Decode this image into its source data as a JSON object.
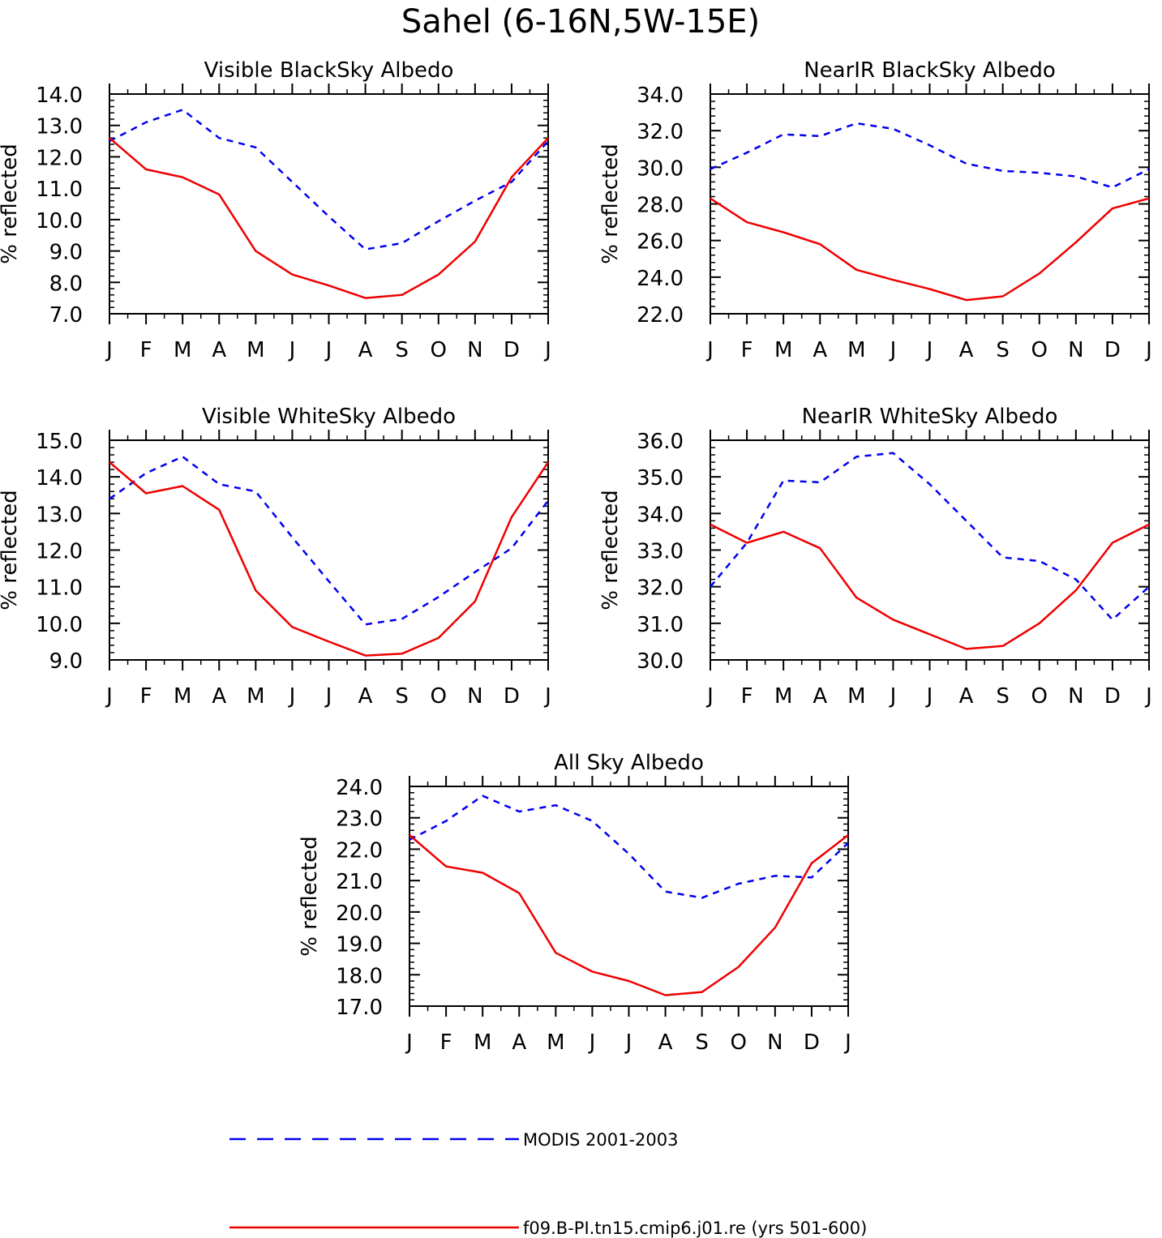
{
  "title": "Sahel (6-16N,5W-15E)",
  "colors": {
    "modis": "#0000ee",
    "model": "#ee0000",
    "axis": "#000000"
  },
  "legend": {
    "modis_label": "MODIS 2001-2003",
    "model_label": "f09.B-PI.tn15.cmip6.j01.re (yrs 501-600)"
  },
  "chart_data": [
    {
      "type": "line",
      "title": "Visible BlackSky Albedo",
      "ylabel": "% reflected",
      "categories": [
        "J",
        "F",
        "M",
        "A",
        "M",
        "J",
        "J",
        "A",
        "S",
        "O",
        "N",
        "D",
        "J"
      ],
      "ylim": [
        7.0,
        14.0
      ],
      "yticks": [
        "7.0",
        "8.0",
        "9.0",
        "10.0",
        "11.0",
        "12.0",
        "13.0",
        "14.0"
      ],
      "series": [
        {
          "name": "MODIS 2001-2003",
          "values": [
            12.5,
            13.1,
            13.5,
            12.6,
            12.3,
            11.2,
            10.1,
            9.05,
            9.25,
            9.95,
            10.6,
            11.2,
            12.5
          ]
        },
        {
          "name": "f09.B-PI.tn15.cmip6.j01.re (yrs 501-600)",
          "values": [
            12.6,
            11.6,
            11.35,
            10.8,
            9.0,
            8.25,
            7.9,
            7.5,
            7.6,
            8.25,
            9.3,
            11.35,
            12.6
          ]
        }
      ]
    },
    {
      "type": "line",
      "title": "NearIR BlackSky Albedo",
      "ylabel": "% reflected",
      "categories": [
        "J",
        "F",
        "M",
        "A",
        "M",
        "J",
        "J",
        "A",
        "S",
        "O",
        "N",
        "D",
        "J"
      ],
      "ylim": [
        22.0,
        34.0
      ],
      "yticks": [
        "22.0",
        "24.0",
        "26.0",
        "28.0",
        "30.0",
        "32.0",
        "34.0"
      ],
      "series": [
        {
          "name": "MODIS 2001-2003",
          "values": [
            29.9,
            30.8,
            31.8,
            31.7,
            32.4,
            32.1,
            31.2,
            30.2,
            29.8,
            29.7,
            29.5,
            28.9,
            29.9
          ]
        },
        {
          "name": "f09.B-PI.tn15.cmip6.j01.re (yrs 501-600)",
          "values": [
            28.3,
            27.0,
            26.45,
            25.8,
            24.4,
            23.85,
            23.35,
            22.75,
            22.95,
            24.2,
            25.9,
            27.75,
            28.3
          ]
        }
      ]
    },
    {
      "type": "line",
      "title": "Visible WhiteSky Albedo",
      "ylabel": "% reflected",
      "categories": [
        "J",
        "F",
        "M",
        "A",
        "M",
        "J",
        "J",
        "A",
        "S",
        "O",
        "N",
        "D",
        "J"
      ],
      "ylim": [
        9.0,
        15.0
      ],
      "yticks": [
        "9.0",
        "10.0",
        "11.0",
        "12.0",
        "13.0",
        "14.0",
        "15.0"
      ],
      "series": [
        {
          "name": "MODIS 2001-2003",
          "values": [
            13.4,
            14.1,
            14.55,
            13.8,
            13.6,
            12.35,
            11.15,
            9.97,
            10.12,
            10.72,
            11.4,
            12.05,
            13.35
          ]
        },
        {
          "name": "f09.B-PI.tn15.cmip6.j01.re (yrs 501-600)",
          "values": [
            14.4,
            13.55,
            13.75,
            13.1,
            10.9,
            9.9,
            9.5,
            9.12,
            9.17,
            9.6,
            10.6,
            12.9,
            14.4
          ]
        }
      ]
    },
    {
      "type": "line",
      "title": "NearIR WhiteSky Albedo",
      "ylabel": "% reflected",
      "categories": [
        "J",
        "F",
        "M",
        "A",
        "M",
        "J",
        "J",
        "A",
        "S",
        "O",
        "N",
        "D",
        "J"
      ],
      "ylim": [
        30.0,
        36.0
      ],
      "yticks": [
        "30.0",
        "31.0",
        "32.0",
        "33.0",
        "34.0",
        "35.0",
        "36.0"
      ],
      "series": [
        {
          "name": "MODIS 2001-2003",
          "values": [
            32.0,
            33.2,
            34.9,
            34.85,
            35.55,
            35.65,
            34.8,
            33.8,
            32.8,
            32.7,
            32.2,
            31.1,
            32.0
          ]
        },
        {
          "name": "f09.B-PI.tn15.cmip6.j01.re (yrs 501-600)",
          "values": [
            33.7,
            33.2,
            33.5,
            33.05,
            31.7,
            31.1,
            30.7,
            30.3,
            30.38,
            31.0,
            31.9,
            33.2,
            33.7
          ]
        }
      ]
    },
    {
      "type": "line",
      "title": "All Sky Albedo",
      "ylabel": "% reflected",
      "categories": [
        "J",
        "F",
        "M",
        "A",
        "M",
        "J",
        "J",
        "A",
        "S",
        "O",
        "N",
        "D",
        "J"
      ],
      "ylim": [
        17.0,
        24.0
      ],
      "yticks": [
        "17.0",
        "18.0",
        "19.0",
        "20.0",
        "21.0",
        "22.0",
        "23.0",
        "24.0"
      ],
      "series": [
        {
          "name": "MODIS 2001-2003",
          "values": [
            22.3,
            22.9,
            23.7,
            23.2,
            23.4,
            22.9,
            21.85,
            20.65,
            20.45,
            20.9,
            21.15,
            21.1,
            22.2
          ]
        },
        {
          "name": "f09.B-PI.tn15.cmip6.j01.re (yrs 501-600)",
          "values": [
            22.45,
            21.45,
            21.25,
            20.6,
            18.7,
            18.1,
            17.8,
            17.35,
            17.45,
            18.25,
            19.5,
            21.55,
            22.45
          ]
        }
      ]
    }
  ]
}
